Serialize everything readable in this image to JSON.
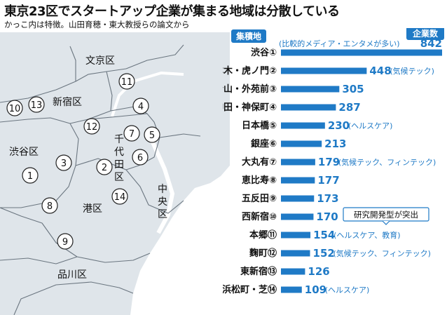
{
  "title": "東京23区でスタートアップ企業が集まる地域は分散している",
  "subtitle": "かっこ内は特徴。山田育穂・東大教授らの論文から",
  "colors": {
    "accent": "#1f7ac6",
    "map_fill": "#dfe5ea",
    "water": "#ffffff",
    "border": "#6b7680"
  },
  "map": {
    "wards": [
      {
        "label": "文京区"
      },
      {
        "label": "新宿区"
      },
      {
        "label": "千代田区"
      },
      {
        "label": "中央区"
      },
      {
        "label": "渋谷区"
      },
      {
        "label": "港区"
      },
      {
        "label": "品川区"
      }
    ],
    "markers": [
      "①",
      "②",
      "③",
      "④",
      "⑤",
      "⑥",
      "⑦",
      "⑧",
      "⑨",
      "⑩",
      "⑪",
      "⑫",
      "⑬",
      "⑭"
    ]
  },
  "chart_data": {
    "type": "bar",
    "orientation": "horizontal",
    "category_header": "集積地",
    "value_header": "企業数",
    "categories": [
      "渋谷①",
      "六本木・虎ノ門②",
      "青山・外苑前③",
      "神田・神保町④",
      "日本橋⑤",
      "銀座⑥",
      "大丸有⑦",
      "恵比寿⑧",
      "五反田⑨",
      "西新宿⑩",
      "本郷⑪",
      "麴町⑫",
      "東新宿⑬",
      "浜松町・芝⑭"
    ],
    "values": [
      842,
      448,
      305,
      287,
      230,
      213,
      179,
      177,
      173,
      170,
      154,
      152,
      126,
      109
    ],
    "annotations": [
      "(比較的メディア・エンタメが多い)",
      "(気候テック)",
      "",
      "",
      "(ヘルスケア)",
      "",
      "(気候テック、フィンテック)",
      "",
      "",
      "",
      "(ヘルスケア、教育)",
      "(気候テック、フィンテック)",
      "",
      "(ヘルスケア)"
    ],
    "callout": "研究開発型が突出",
    "xlim": [
      0,
      842
    ]
  }
}
